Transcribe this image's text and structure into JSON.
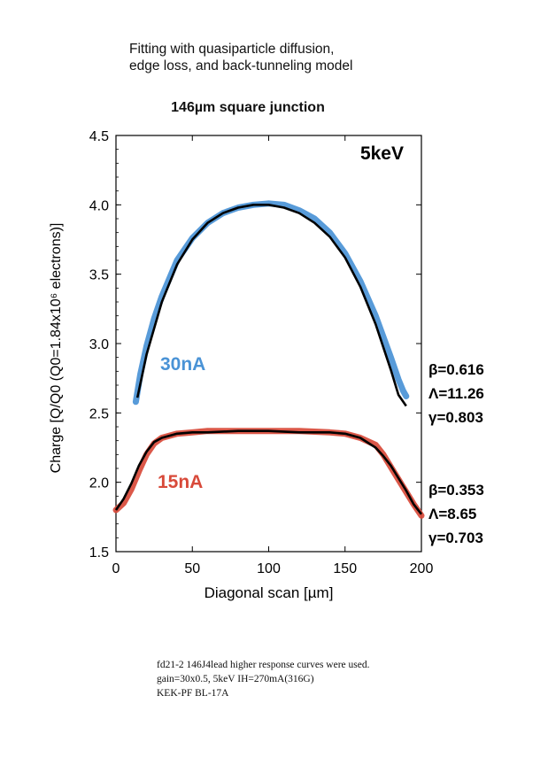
{
  "heading": {
    "line1": "Fitting with quasiparticle diffusion,",
    "line2": "edge loss, and back-tunneling model"
  },
  "subtitle": "146µm square junction",
  "notes": [
    "fd21-2 146J4lead higher response curves were used.",
    "gain=30x0.5, 5keV IH=270mA(316G)",
    "KEK-PF BL-17A"
  ],
  "colors": {
    "curve_30nA": "#4a93d6",
    "curve_15nA": "#d84a3a",
    "fit": "#000000"
  },
  "chart_data": {
    "type": "line",
    "title": "146µm square junction",
    "energy_label": "5keV",
    "xlabel": "Diagonal scan [µm]",
    "ylabel": "Charge [Q/Q0 (Q0=1.84x10⁶ electrons)]",
    "xlim": [
      0,
      200
    ],
    "ylim": [
      1.5,
      4.5
    ],
    "xticks": [
      "0",
      "50",
      "100",
      "150",
      "200"
    ],
    "yticks": [
      "1.5",
      "2.0",
      "2.5",
      "3.0",
      "3.5",
      "4.0",
      "4.5"
    ],
    "series": [
      {
        "name": "30nA",
        "label": "30nA",
        "kind": "data",
        "x": [
          13,
          16,
          20,
          25,
          30,
          40,
          50,
          60,
          70,
          80,
          90,
          100,
          110,
          120,
          130,
          140,
          150,
          160,
          170,
          180,
          185,
          188,
          190
        ],
        "y": [
          2.58,
          2.78,
          2.98,
          3.18,
          3.34,
          3.6,
          3.76,
          3.87,
          3.94,
          3.98,
          4.0,
          4.01,
          4.0,
          3.96,
          3.9,
          3.8,
          3.65,
          3.45,
          3.2,
          2.9,
          2.74,
          2.66,
          2.62
        ]
      },
      {
        "name": "30nA fit",
        "kind": "fit",
        "x": [
          14,
          20,
          30,
          40,
          50,
          60,
          70,
          80,
          90,
          100,
          110,
          120,
          130,
          140,
          150,
          160,
          170,
          180,
          185,
          190
        ],
        "y": [
          2.61,
          2.92,
          3.3,
          3.57,
          3.75,
          3.87,
          3.94,
          3.98,
          4.0,
          4.0,
          3.98,
          3.94,
          3.87,
          3.77,
          3.62,
          3.41,
          3.14,
          2.81,
          2.63,
          2.55
        ]
      },
      {
        "name": "15nA",
        "label": "15nA",
        "kind": "data",
        "x": [
          0,
          5,
          10,
          15,
          20,
          25,
          30,
          40,
          50,
          60,
          80,
          100,
          120,
          140,
          150,
          160,
          170,
          175,
          180,
          185,
          190,
          195,
          200
        ],
        "y": [
          1.8,
          1.85,
          1.95,
          2.08,
          2.2,
          2.28,
          2.32,
          2.35,
          2.36,
          2.37,
          2.37,
          2.37,
          2.37,
          2.36,
          2.35,
          2.32,
          2.27,
          2.2,
          2.11,
          2.02,
          1.93,
          1.84,
          1.76
        ]
      },
      {
        "name": "15nA fit",
        "kind": "fit",
        "x": [
          0,
          5,
          10,
          15,
          20,
          25,
          30,
          40,
          50,
          60,
          80,
          100,
          120,
          140,
          150,
          160,
          170,
          175,
          180,
          185,
          190,
          195,
          200
        ],
        "y": [
          1.8,
          1.88,
          1.99,
          2.12,
          2.22,
          2.29,
          2.32,
          2.35,
          2.36,
          2.36,
          2.37,
          2.37,
          2.36,
          2.36,
          2.35,
          2.32,
          2.25,
          2.19,
          2.12,
          2.03,
          1.94,
          1.84,
          1.77
        ]
      }
    ],
    "annotations": {
      "fit_30nA": [
        "β=0.616",
        "Λ=11.26",
        "γ=0.803"
      ],
      "fit_15nA": [
        "β=0.353",
        "Λ=8.65",
        "γ=0.703"
      ]
    }
  }
}
